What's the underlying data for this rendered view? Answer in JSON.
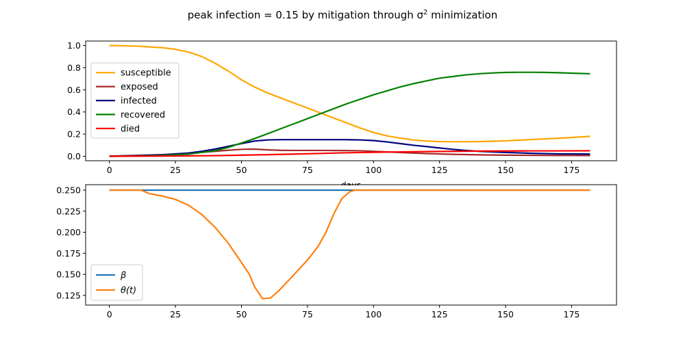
{
  "figure": {
    "title": "peak infection = 0.15 by mitigation through σ² minimization",
    "title_prefix": "peak infection = 0.15 by mitigation through σ",
    "title_sup": "2",
    "title_suffix": " minimization"
  },
  "chart_data": [
    {
      "type": "line",
      "xlabel": "days",
      "ylabel": "",
      "xlim": [
        -9,
        192
      ],
      "ylim": [
        -0.04,
        1.04
      ],
      "xticks": [
        0,
        25,
        50,
        75,
        100,
        125,
        150,
        175
      ],
      "yticks": [
        0.0,
        0.2,
        0.4,
        0.6,
        0.8,
        1.0
      ],
      "ytick_labels": [
        "0.0",
        "0.2",
        "0.4",
        "0.6",
        "0.8",
        "1.0"
      ],
      "grid": false,
      "legend_position": "center-left",
      "series": [
        {
          "name": "susceptible",
          "color": "#ffa500",
          "points": [
            [
              0,
              1.0
            ],
            [
              10,
              0.995
            ],
            [
              20,
              0.98
            ],
            [
              25,
              0.965
            ],
            [
              30,
              0.94
            ],
            [
              35,
              0.9
            ],
            [
              40,
              0.84
            ],
            [
              45,
              0.77
            ],
            [
              50,
              0.69
            ],
            [
              55,
              0.625
            ],
            [
              60,
              0.57
            ],
            [
              65,
              0.525
            ],
            [
              70,
              0.48
            ],
            [
              75,
              0.435
            ],
            [
              80,
              0.39
            ],
            [
              85,
              0.345
            ],
            [
              90,
              0.3
            ],
            [
              95,
              0.255
            ],
            [
              100,
              0.215
            ],
            [
              105,
              0.185
            ],
            [
              110,
              0.165
            ],
            [
              115,
              0.148
            ],
            [
              120,
              0.138
            ],
            [
              125,
              0.133
            ],
            [
              130,
              0.132
            ],
            [
              135,
              0.132
            ],
            [
              140,
              0.133
            ],
            [
              145,
              0.136
            ],
            [
              150,
              0.14
            ],
            [
              155,
              0.145
            ],
            [
              160,
              0.151
            ],
            [
              165,
              0.157
            ],
            [
              170,
              0.163
            ],
            [
              175,
              0.17
            ],
            [
              182,
              0.18
            ]
          ]
        },
        {
          "name": "exposed",
          "color": "#a52a2a",
          "points": [
            [
              0,
              0.002
            ],
            [
              10,
              0.008
            ],
            [
              20,
              0.015
            ],
            [
              30,
              0.028
            ],
            [
              40,
              0.045
            ],
            [
              45,
              0.055
            ],
            [
              50,
              0.063
            ],
            [
              55,
              0.065
            ],
            [
              60,
              0.058
            ],
            [
              65,
              0.054
            ],
            [
              70,
              0.053
            ],
            [
              80,
              0.053
            ],
            [
              90,
              0.052
            ],
            [
              95,
              0.05
            ],
            [
              100,
              0.045
            ],
            [
              110,
              0.035
            ],
            [
              120,
              0.025
            ],
            [
              130,
              0.018
            ],
            [
              140,
              0.013
            ],
            [
              150,
              0.01
            ],
            [
              160,
              0.009
            ],
            [
              170,
              0.008
            ],
            [
              182,
              0.007
            ]
          ]
        },
        {
          "name": "infected",
          "color": "#000080",
          "points": [
            [
              0,
              0.001
            ],
            [
              10,
              0.006
            ],
            [
              20,
              0.013
            ],
            [
              30,
              0.03
            ],
            [
              35,
              0.045
            ],
            [
              40,
              0.065
            ],
            [
              45,
              0.09
            ],
            [
              50,
              0.115
            ],
            [
              55,
              0.138
            ],
            [
              60,
              0.148
            ],
            [
              65,
              0.15
            ],
            [
              70,
              0.15
            ],
            [
              80,
              0.15
            ],
            [
              90,
              0.15
            ],
            [
              95,
              0.148
            ],
            [
              100,
              0.142
            ],
            [
              105,
              0.13
            ],
            [
              110,
              0.115
            ],
            [
              115,
              0.1
            ],
            [
              120,
              0.088
            ],
            [
              125,
              0.075
            ],
            [
              130,
              0.063
            ],
            [
              135,
              0.053
            ],
            [
              140,
              0.045
            ],
            [
              150,
              0.035
            ],
            [
              160,
              0.027
            ],
            [
              170,
              0.022
            ],
            [
              182,
              0.02
            ]
          ]
        },
        {
          "name": "recovered",
          "color": "#008000",
          "points": [
            [
              0,
              0.0
            ],
            [
              10,
              0.002
            ],
            [
              20,
              0.007
            ],
            [
              30,
              0.02
            ],
            [
              40,
              0.05
            ],
            [
              45,
              0.08
            ],
            [
              50,
              0.12
            ],
            [
              55,
              0.16
            ],
            [
              60,
              0.205
            ],
            [
              65,
              0.25
            ],
            [
              70,
              0.295
            ],
            [
              75,
              0.34
            ],
            [
              80,
              0.385
            ],
            [
              85,
              0.43
            ],
            [
              90,
              0.475
            ],
            [
              95,
              0.515
            ],
            [
              100,
              0.555
            ],
            [
              105,
              0.59
            ],
            [
              110,
              0.625
            ],
            [
              115,
              0.655
            ],
            [
              120,
              0.68
            ],
            [
              125,
              0.705
            ],
            [
              130,
              0.72
            ],
            [
              135,
              0.735
            ],
            [
              140,
              0.745
            ],
            [
              145,
              0.752
            ],
            [
              150,
              0.757
            ],
            [
              155,
              0.758
            ],
            [
              160,
              0.758
            ],
            [
              165,
              0.757
            ],
            [
              170,
              0.754
            ],
            [
              175,
              0.75
            ],
            [
              182,
              0.745
            ]
          ]
        },
        {
          "name": "died",
          "color": "#ff0000",
          "points": [
            [
              0,
              0.0
            ],
            [
              20,
              0.002
            ],
            [
              30,
              0.004
            ],
            [
              40,
              0.006
            ],
            [
              50,
              0.01
            ],
            [
              60,
              0.015
            ],
            [
              70,
              0.02
            ],
            [
              80,
              0.026
            ],
            [
              90,
              0.032
            ],
            [
              100,
              0.036
            ],
            [
              110,
              0.04
            ],
            [
              120,
              0.043
            ],
            [
              130,
              0.045
            ],
            [
              140,
              0.047
            ],
            [
              150,
              0.048
            ],
            [
              160,
              0.049
            ],
            [
              170,
              0.049
            ],
            [
              182,
              0.05
            ]
          ]
        }
      ]
    },
    {
      "type": "line",
      "xlabel": "",
      "ylabel": "",
      "xlim": [
        -9,
        192
      ],
      "ylim": [
        0.1135,
        0.2565
      ],
      "xticks": [
        0,
        25,
        50,
        75,
        100,
        125,
        150,
        175
      ],
      "yticks": [
        0.125,
        0.15,
        0.175,
        0.2,
        0.225,
        0.25
      ],
      "ytick_labels": [
        "0.125",
        "0.150",
        "0.175",
        "0.200",
        "0.225",
        "0.250"
      ],
      "grid": false,
      "legend_position": "lower-left",
      "series": [
        {
          "name": "β",
          "color": "#1f77b4",
          "points": [
            [
              0,
              0.25
            ],
            [
              182,
              0.25
            ]
          ]
        },
        {
          "name": "θ(t)",
          "color": "#ff7f0e",
          "points": [
            [
              0,
              0.25
            ],
            [
              12,
              0.25
            ],
            [
              15,
              0.246
            ],
            [
              20,
              0.243
            ],
            [
              25,
              0.239
            ],
            [
              30,
              0.232
            ],
            [
              35,
              0.221
            ],
            [
              40,
              0.206
            ],
            [
              45,
              0.187
            ],
            [
              50,
              0.164
            ],
            [
              53,
              0.15
            ],
            [
              55,
              0.135
            ],
            [
              58,
              0.121
            ],
            [
              61,
              0.122
            ],
            [
              64,
              0.13
            ],
            [
              67,
              0.14
            ],
            [
              70,
              0.15
            ],
            [
              75,
              0.167
            ],
            [
              79,
              0.183
            ],
            [
              82,
              0.2
            ],
            [
              85,
              0.222
            ],
            [
              88,
              0.24
            ],
            [
              91,
              0.248
            ],
            [
              93,
              0.25
            ],
            [
              100,
              0.25
            ],
            [
              182,
              0.25
            ]
          ]
        }
      ]
    }
  ]
}
